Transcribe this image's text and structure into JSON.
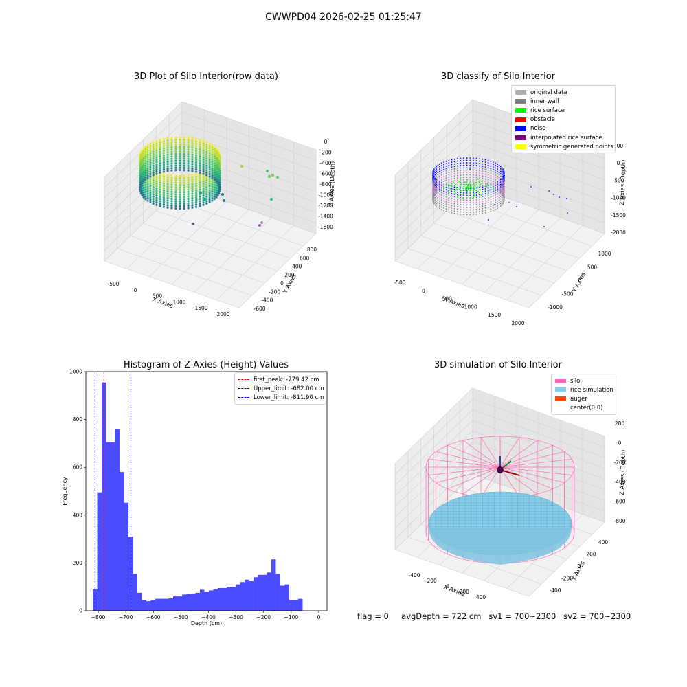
{
  "figure": {
    "suptitle": "CWWPD04 2026-02-25 01:25:47"
  },
  "panels": {
    "raw": {
      "title": "3D Plot of Silo Interior(row data)",
      "xlabel": "X Axies",
      "ylabel": "Y Axies",
      "zlabel": "Z Axies (Depth)",
      "xticks": [
        "-500",
        "0",
        "500",
        "1000",
        "1500",
        "2000"
      ],
      "yticks": [
        "800",
        "600",
        "400",
        "200",
        "0",
        "-200",
        "-400",
        "-600"
      ],
      "zticks": [
        "0",
        "-200",
        "-400",
        "-600",
        "-800",
        "-1000",
        "-1200",
        "-1400",
        "-1600"
      ]
    },
    "classify": {
      "title": "3D classify of Silo Interior",
      "xlabel": "X Axies",
      "ylabel": "Y Axies",
      "zlabel": "Z Axies (Depth)",
      "xticks": [
        "-500",
        "0",
        "500",
        "1000",
        "1500",
        "2000"
      ],
      "yticks": [
        "1000",
        "500",
        "0",
        "-500",
        "-1000"
      ],
      "zticks": [
        "500",
        "0",
        "-500",
        "-1000",
        "-1500",
        "-2000"
      ],
      "legend": [
        {
          "label": "original data",
          "color": "#b0b0b0"
        },
        {
          "label": "inner wall",
          "color": "#808080"
        },
        {
          "label": "rice surface",
          "color": "#00ff00"
        },
        {
          "label": "obstacle",
          "color": "#ff0000"
        },
        {
          "label": "noise",
          "color": "#0000ff"
        },
        {
          "label": "interpolated rice surface",
          "color": "#800080"
        },
        {
          "label": "symmetric generated points",
          "color": "#ffff00"
        }
      ]
    },
    "simulation": {
      "title": "3D simulation of Silo Interior",
      "xlabel": "X Axies",
      "ylabel": "Y Axies",
      "zlabel": "Z Axies (Depth)",
      "xticks": [
        "-400",
        "-200",
        "0",
        "200",
        "400"
      ],
      "yticks": [
        "400",
        "200",
        "0",
        "-200",
        "-400"
      ],
      "zticks": [
        "200",
        "0",
        "-200",
        "-400",
        "-600",
        "-800"
      ],
      "legend": [
        {
          "label": "silo",
          "color": "#ff69b4"
        },
        {
          "label": "rice simulation",
          "color": "#87ceeb"
        },
        {
          "label": "auger",
          "color": "#ff4500"
        },
        {
          "label": "center(0,0)",
          "color": ""
        }
      ]
    }
  },
  "chart_data": [
    {
      "type": "histogram",
      "title": "Histogram of Z-Axies (Height) Values",
      "xlabel": "Depth (cm)",
      "ylabel": "Frequency",
      "xlim": [
        -845,
        30
      ],
      "ylim": [
        0,
        1000
      ],
      "xticks": [
        -800,
        -700,
        -600,
        -500,
        -400,
        -300,
        -200,
        -100,
        0
      ],
      "yticks": [
        0,
        200,
        400,
        600,
        800,
        1000
      ],
      "bin_width": 16.2,
      "bin_start": -820,
      "bar_color": "#4b4bff",
      "values": [
        90,
        495,
        955,
        705,
        705,
        760,
        580,
        452,
        310,
        155,
        75,
        45,
        40,
        45,
        50,
        50,
        50,
        52,
        60,
        60,
        68,
        70,
        72,
        75,
        88,
        80,
        85,
        90,
        95,
        95,
        100,
        100,
        110,
        120,
        130,
        125,
        140,
        150,
        150,
        160,
        215,
        155,
        105,
        110,
        45,
        45,
        50
      ],
      "vlines": [
        {
          "label": "first_peak: -779.42 cm",
          "x": -779.42,
          "color": "#ff0000"
        },
        {
          "label": "Upper_limit: -682.00 cm",
          "x": -682.0,
          "color": "#0000ff"
        },
        {
          "label": "Lower_limit: -811.90 cm",
          "x": -811.9,
          "color": "#0000ff"
        }
      ],
      "legend_position": "upper right"
    }
  ],
  "status": {
    "flag": "flag = 0",
    "avg_depth": "avgDepth = 722 cm",
    "sv1": "sv1 = 700~2300",
    "sv2": "sv2 = 700~2300"
  }
}
